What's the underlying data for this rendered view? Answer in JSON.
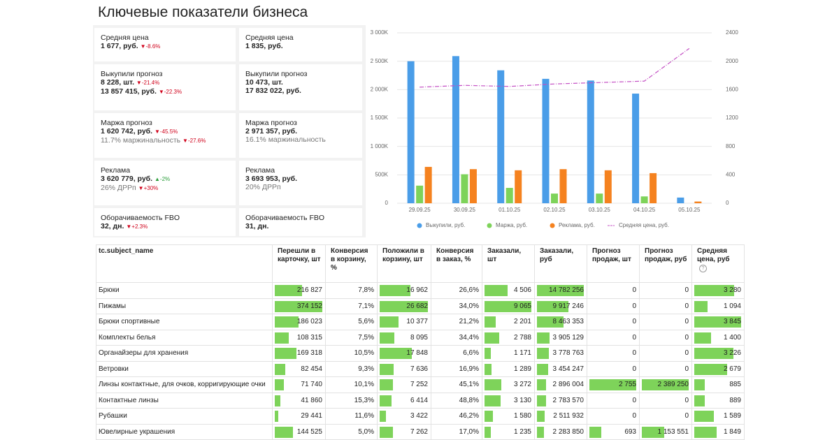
{
  "header": {
    "title": "Ключевые показатели бизнеса"
  },
  "kpi": {
    "columns": [
      [
        {
          "label": "Средняя цена",
          "lines": [
            {
              "text": "1 677, руб.",
              "arrow": "▼",
              "change": "-8.6%",
              "color": "#d0021b"
            }
          ]
        },
        {
          "label": "Выкупили прогноз",
          "lines": [
            {
              "text": "8 228, шт.",
              "arrow": "▼",
              "change": "-21.4%",
              "color": "#d0021b"
            },
            {
              "text": "13 857 415, руб.",
              "arrow": "▼",
              "change": "-22.3%",
              "color": "#d0021b"
            }
          ]
        },
        {
          "label": "Маржа прогноз",
          "lines": [
            {
              "text": "1 620 742, руб.",
              "arrow": "▼",
              "change": "-45.5%",
              "color": "#d0021b"
            },
            {
              "text": "11.7% маржинальность",
              "muted": true,
              "arrow": "▼",
              "change": "-27.6%",
              "color": "#d0021b"
            }
          ]
        },
        {
          "label": "Реклама",
          "lines": [
            {
              "text": "3 620 779, руб.",
              "arrow": "▲",
              "change": "-2%",
              "color": "#2a9d3a"
            },
            {
              "text": "26% ДРРп",
              "muted": true,
              "arrow": "▼",
              "change": "+30%",
              "color": "#d0021b"
            }
          ]
        },
        {
          "label": "Оборачиваемость FBO",
          "lines": [
            {
              "text": "32, дн.",
              "arrow": "▼",
              "change": "+2.3%",
              "color": "#d0021b"
            }
          ]
        }
      ],
      [
        {
          "label": "Средняя цена",
          "lines": [
            {
              "text": "1 835, руб."
            }
          ]
        },
        {
          "label": "Выкупили прогноз",
          "lines": [
            {
              "text": "10 473, шт."
            },
            {
              "text": "17 832 022, руб."
            }
          ]
        },
        {
          "label": "Маржа прогноз",
          "lines": [
            {
              "text": "2 971 357, руб."
            },
            {
              "text": "16.1% маржинальность",
              "muted": true
            }
          ]
        },
        {
          "label": "Реклама",
          "lines": [
            {
              "text": "3 693 953, руб."
            },
            {
              "text": "20% ДРРп",
              "muted": true
            }
          ]
        },
        {
          "label": "Оборачиваемость FBO",
          "lines": [
            {
              "text": "31, дн."
            }
          ]
        }
      ]
    ]
  },
  "chart_data": {
    "type": "bar",
    "categories": [
      "29.09.25",
      "30.09.25",
      "01.10.25",
      "02.10.25",
      "03.10.25",
      "04.10.25",
      "05.10.25"
    ],
    "series": [
      {
        "name": "Выкупили, руб.",
        "color": "#4a9de8",
        "values": [
          2500000,
          2590000,
          2340000,
          2190000,
          2160000,
          1930000,
          100000
        ]
      },
      {
        "name": "Маржа, руб.",
        "color": "#7ed35a",
        "values": [
          310000,
          510000,
          270000,
          170000,
          170000,
          120000,
          0
        ]
      },
      {
        "name": "Реклама, руб.",
        "color": "#f5821f",
        "values": [
          640000,
          600000,
          580000,
          600000,
          580000,
          530000,
          30000
        ]
      },
      {
        "name": "Средняя цена, руб.",
        "color": "#c44fc4",
        "type": "line",
        "axis": "y2",
        "values": [
          1635,
          1660,
          1645,
          1680,
          1700,
          1720,
          2180
        ]
      }
    ],
    "ylim": [
      0,
      3000000
    ],
    "yticks": [
      0,
      {
        "value": 500000,
        "label": "500K"
      },
      {
        "value": 1000000,
        "label": "1 000K"
      },
      {
        "value": 1500000,
        "label": "1 500K"
      },
      {
        "value": 2000000,
        "label": "2 000K"
      },
      {
        "value": 2500000,
        "label": "2 500K"
      },
      {
        "value": 3000000,
        "label": "3 000K"
      }
    ],
    "y2lim": [
      0,
      2400
    ],
    "y2ticks": [
      0,
      400,
      800,
      1200,
      1600,
      2000,
      2400
    ],
    "grid": true
  },
  "table": {
    "columns": [
      "tc.subject_name",
      "Перешли в карточку, шт",
      "Конверсия в корзину, %",
      "Положили в корзину, шт",
      "Конверсия в заказ, %",
      "Заказали, шт",
      "Заказали, руб",
      "Прогноз продаж, шт",
      "Прогноз продаж, руб",
      "Средняя цена, руб"
    ],
    "bar_columns": [
      1,
      3,
      5,
      6,
      7,
      8,
      9
    ],
    "rows": [
      [
        "Брюки",
        "216 827",
        "7,8%",
        "16 962",
        "26,6%",
        "4 506",
        "14 782 256",
        "0",
        "0",
        "3 280"
      ],
      [
        "Пижамы",
        "374 152",
        "7,1%",
        "26 682",
        "34,0%",
        "9 065",
        "9 917 246",
        "0",
        "0",
        "1 094"
      ],
      [
        "Брюки спортивные",
        "186 023",
        "5,6%",
        "10 377",
        "21,2%",
        "2 201",
        "8 463 353",
        "0",
        "0",
        "3 845"
      ],
      [
        "Комплекты белья",
        "108 315",
        "7,5%",
        "8 095",
        "34,4%",
        "2 788",
        "3 905 129",
        "0",
        "0",
        "1 400"
      ],
      [
        "Органайзеры для хранения",
        "169 318",
        "10,5%",
        "17 848",
        "6,6%",
        "1 171",
        "3 778 763",
        "0",
        "0",
        "3 226"
      ],
      [
        "Ветровки",
        "82 454",
        "9,3%",
        "7 636",
        "16,9%",
        "1 289",
        "3 454 247",
        "0",
        "0",
        "2 679"
      ],
      [
        "Линзы контактные, для очков, корригирующие очки",
        "71 740",
        "10,1%",
        "7 252",
        "45,1%",
        "3 272",
        "2 896 004",
        "2 755",
        "2 389 250",
        "885"
      ],
      [
        "Контактные линзы",
        "41 860",
        "15,3%",
        "6 414",
        "48,8%",
        "3 130",
        "2 783 570",
        "0",
        "0",
        "889"
      ],
      [
        "Рубашки",
        "29 441",
        "11,6%",
        "3 422",
        "46,2%",
        "1 580",
        "2 511 932",
        "0",
        "0",
        "1 589"
      ],
      [
        "Ювелирные украшения",
        "144 525",
        "5,0%",
        "7 262",
        "17,0%",
        "1 235",
        "2 283 850",
        "693",
        "1 153 551",
        "1 849"
      ]
    ]
  }
}
